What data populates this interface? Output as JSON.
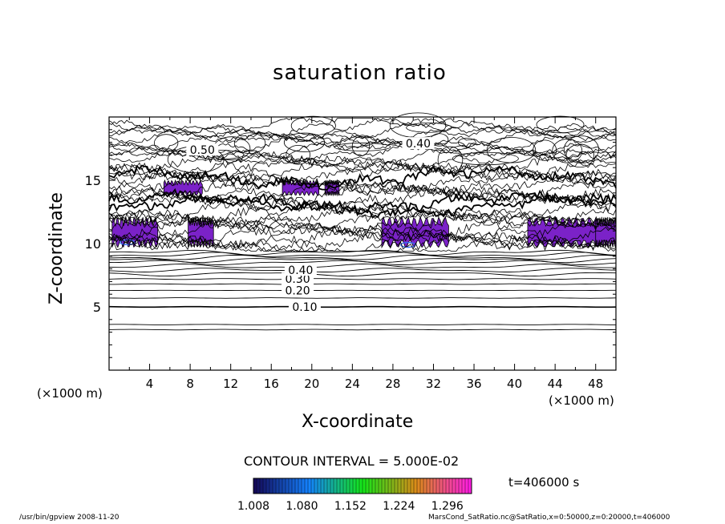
{
  "chart_data": {
    "type": "contour",
    "title": "saturation ratio",
    "xlabel": "X-coordinate",
    "ylabel": "Z-coordinate",
    "x_unit": "(×1000 m)",
    "y_unit": "(×1000 m)",
    "xlim": [
      0,
      50
    ],
    "ylim": [
      0,
      20
    ],
    "x_ticks": [
      4,
      8,
      12,
      16,
      20,
      24,
      28,
      32,
      36,
      40,
      44,
      48
    ],
    "y_ticks": [
      5,
      10,
      15
    ],
    "contour_interval_label": "CONTOUR INTERVAL = 5.000E-02",
    "contour_labels": [
      "0.10",
      "0.20",
      "0.30",
      "0.40",
      "0.50",
      "0.40"
    ],
    "contour_levels_lower": [
      0.1,
      0.15,
      0.2,
      0.25,
      0.3,
      0.35,
      0.4,
      0.45,
      0.5
    ],
    "shaded_threshold": 1.008,
    "colorbar_ticks": [
      "1.008",
      "1.080",
      "1.152",
      "1.224",
      "1.296"
    ],
    "colorbar_range": [
      1.008,
      1.332
    ],
    "time_label": "t=406000 s",
    "supersaturated_regions_z10": [
      [
        0.3,
        4.8
      ],
      [
        7.8,
        10.3
      ],
      [
        26.9,
        33.5
      ],
      [
        41.3,
        48.4
      ],
      [
        48.0,
        50.0
      ]
    ],
    "supersaturated_regions_z15": [
      [
        5.4,
        9.2
      ],
      [
        17.1,
        20.7
      ],
      [
        21.3,
        22.7
      ]
    ],
    "colors": {
      "shade": "#7b22c8",
      "shade_core": "#3a6df0",
      "line": "#000000"
    }
  },
  "footer": {
    "left": "/usr/bin/gpview   2008-11-20",
    "right": "MarsCond_SatRatio.nc@SatRatio,x=0:50000,z=0:20000,t=406000"
  }
}
